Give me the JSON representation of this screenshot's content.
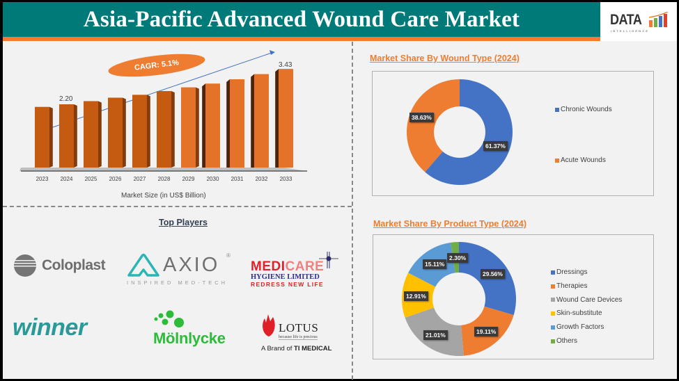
{
  "header": {
    "title": "Asia-Pacific Advanced Wound Care Market",
    "logo_text": "DATA",
    "logo_sub": "INTELLIGENCE"
  },
  "colors": {
    "header_bg": "#007a78",
    "accent_orange": "#ee7d31",
    "bar_face": "#c55a11",
    "bar_side": "#843c0c",
    "blue": "#4472c4",
    "gray": "#a5a5a5",
    "yellow": "#ffc000",
    "light_blue": "#5b9bd5",
    "green": "#70ad47"
  },
  "chart_data": [
    {
      "type": "bar",
      "title": "Market Size (in US$ Billion)",
      "xlabel": "Market Size (in US$ Billion)",
      "ylabel": "",
      "categories": [
        "2023",
        "2024",
        "2025",
        "2026",
        "2027",
        "2028",
        "2029",
        "2030",
        "2031",
        "2032",
        "2033"
      ],
      "values": [
        2.11,
        2.2,
        2.31,
        2.43,
        2.53,
        2.66,
        2.79,
        2.92,
        3.07,
        3.25,
        3.43
      ],
      "data_labels": {
        "2024": "2.20",
        "2033": "3.43"
      },
      "annotation": "CAGR: 5.1%",
      "grid": false,
      "ylim": [
        0,
        3.6
      ]
    },
    {
      "type": "pie",
      "title": "Market Share By Wound Type (2024)",
      "categories": [
        "Chronic Wounds",
        "Acute Wounds"
      ],
      "values": [
        61.37,
        38.63
      ],
      "labels": [
        "61.37%",
        "38.63%"
      ],
      "colors": [
        "#4472c4",
        "#ee7d31"
      ],
      "legend_position": "right"
    },
    {
      "type": "pie",
      "title": "Market Share By Product Type (2024)",
      "categories": [
        "Dressings",
        "Therapies",
        "Wound Care Devices",
        "Skin-substitute",
        "Growth Factors",
        "Others"
      ],
      "values": [
        29.56,
        19.11,
        21.01,
        12.91,
        15.11,
        2.3
      ],
      "labels": [
        "29.56%",
        "19.11%",
        "21.01%",
        "12.91%",
        "15.11%",
        "2.30%"
      ],
      "colors": [
        "#4472c4",
        "#ee7d31",
        "#a5a5a5",
        "#ffc000",
        "#5b9bd5",
        "#70ad47"
      ],
      "legend_position": "right"
    }
  ],
  "bar_section": {
    "cagr": "CAGR: 5.1%",
    "label_2024": "2.20",
    "label_2033": "3.43",
    "axis_title": "Market Size (in US$ Billion)",
    "years": [
      "2023",
      "2024",
      "2025",
      "2026",
      "2027",
      "2028",
      "2029",
      "2030",
      "2031",
      "2032",
      "2033"
    ]
  },
  "wound_type": {
    "title": "Market Share By Wound Type (2024)",
    "legend": [
      "Chronic Wounds",
      "Acute Wounds"
    ],
    "labels": [
      "61.37%",
      "38.63%"
    ]
  },
  "product_type": {
    "title": "Market Share By Product Type (2024)",
    "legend": [
      "Dressings",
      "Therapies",
      "Wound Care Devices",
      "Skin-substitute",
      "Growth Factors",
      "Others"
    ],
    "labels": [
      "29.56%",
      "19.11%",
      "21.01%",
      "12.91%",
      "15.11%",
      "2.30%"
    ]
  },
  "players": {
    "title": "Top Players",
    "coloplast": "Coloplast",
    "axio": "AXIO",
    "axio_tag": "INSPIRED MED-TECH",
    "medicare_a": "MEDI",
    "medicare_b": "CARE",
    "medicare_line2": "HYGIENE LIMITED",
    "medicare_line3": "REDRESS NEW LIFE",
    "winner": "winner",
    "molnlycke": "Mölnlycke",
    "lotus": "LOTUS",
    "lotus_tag": "because life is precious",
    "lotus_brand_a": "A Brand of ",
    "lotus_brand_b": "TI MEDICAL"
  }
}
